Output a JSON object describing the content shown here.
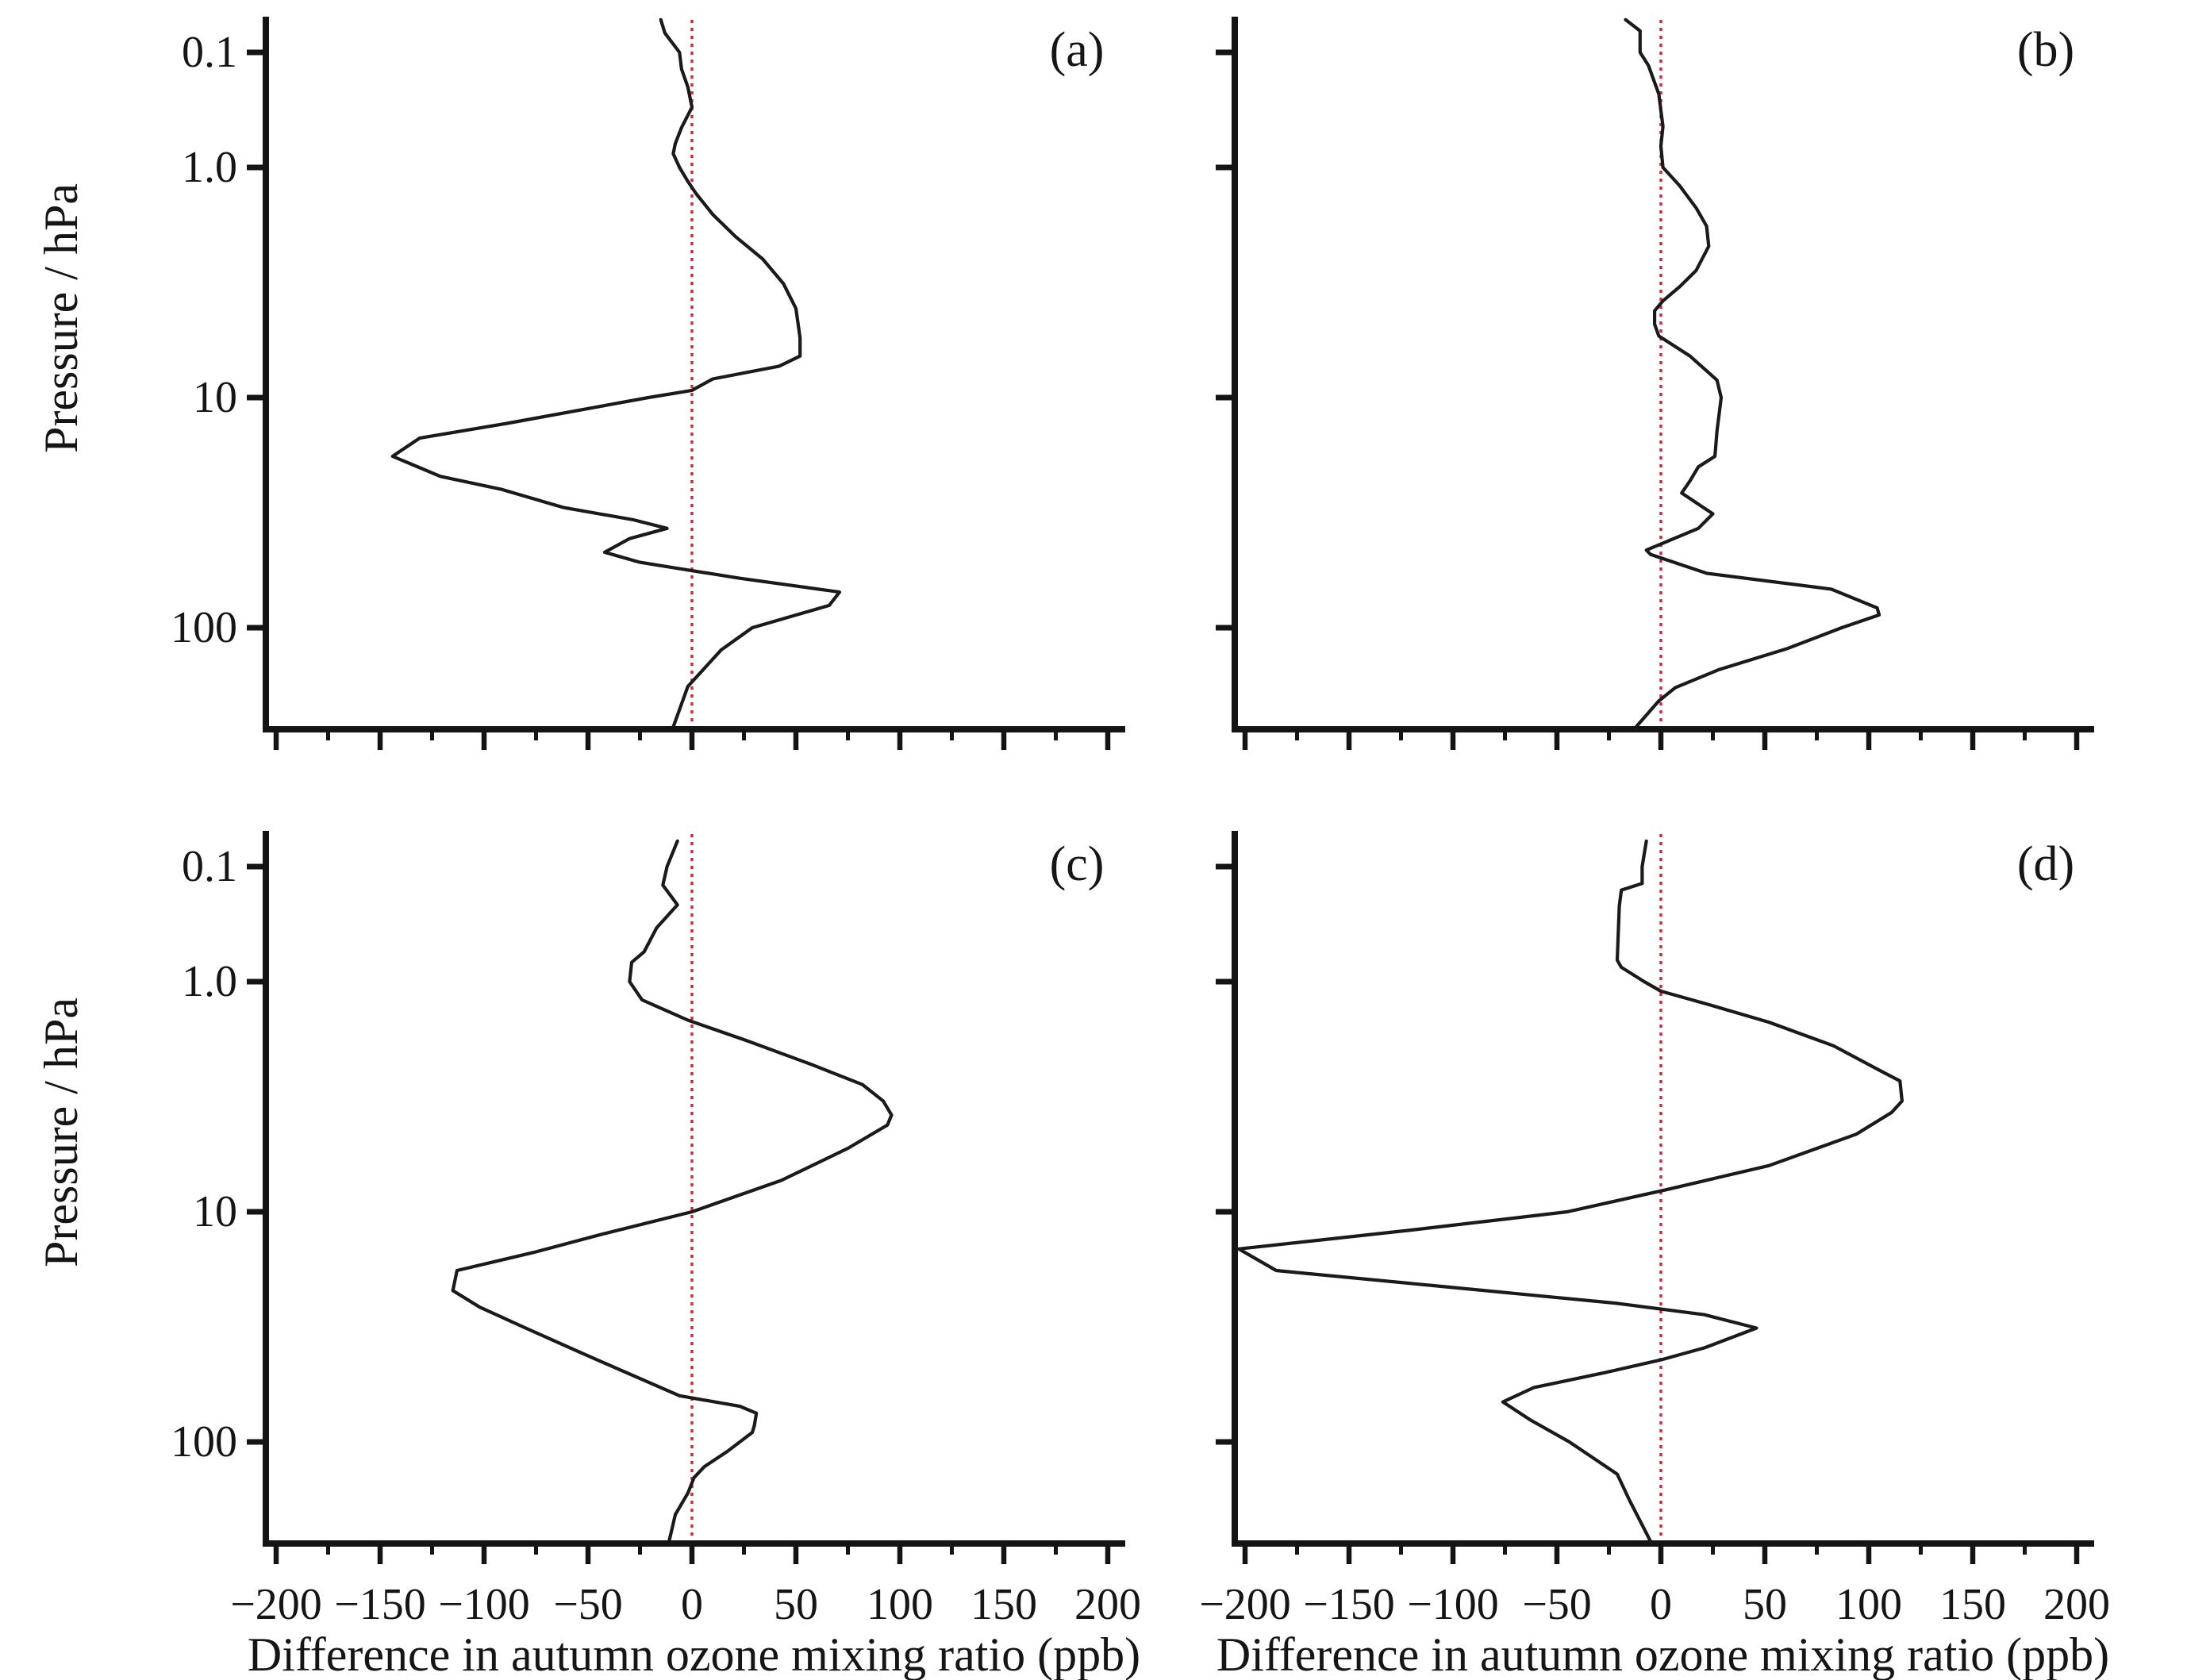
{
  "figure": {
    "background": "#ffffff",
    "axis_color": "#141414",
    "curve_color": "#1a1a1a",
    "zero_line_color": "#cf2b3a",
    "x_axis": {
      "title": "Difference in autumn ozone mixing ratio (ppb)",
      "min": -205,
      "max": 207,
      "major_tick_values": [
        -200,
        -150,
        -100,
        -50,
        0,
        50,
        100,
        150,
        200
      ],
      "tick_labels": [
        "−200",
        "−150",
        "−100",
        "−50",
        "0",
        "50",
        "100",
        "150",
        "200"
      ],
      "minor_step": 25
    },
    "y_axis": {
      "title": "Pressure / hPa",
      "tick_values": [
        0.1,
        1.0,
        10,
        100
      ],
      "tick_labels": [
        "0.1",
        "1.0",
        "10",
        "100"
      ],
      "top": 0.052,
      "bottom": 276,
      "scale": "log, decades above 1 hPa drawn at half height"
    }
  },
  "chart_data": {
    "type": "line",
    "xlabel": "Difference in autumn ozone mixing ratio (ppb)",
    "ylabel": "Pressure / hPa",
    "xlim": [
      -205,
      207
    ],
    "ylim_pressure_hPa": [
      0.052,
      276
    ],
    "zero_reference_line": 0,
    "grid": false,
    "legend": "none",
    "panels": [
      {
        "label": "(a)",
        "points_ppb_hPa": [
          [
            -15,
            0.052
          ],
          [
            -13,
            0.068
          ],
          [
            -6,
            0.1
          ],
          [
            -5,
            0.14
          ],
          [
            -2,
            0.2
          ],
          [
            0,
            0.3
          ],
          [
            -5,
            0.45
          ],
          [
            -8,
            0.62
          ],
          [
            -9,
            0.76
          ],
          [
            -6,
            1.0
          ],
          [
            -2,
            1.15
          ],
          [
            2,
            1.3
          ],
          [
            10,
            1.6
          ],
          [
            21,
            2.0
          ],
          [
            34,
            2.5
          ],
          [
            44,
            3.2
          ],
          [
            50,
            4.1
          ],
          [
            52,
            5.5
          ],
          [
            52,
            6.6
          ],
          [
            42,
            7.3
          ],
          [
            10,
            8.3
          ],
          [
            0,
            9.3
          ],
          [
            -21,
            10
          ],
          [
            -90,
            13
          ],
          [
            -131,
            15
          ],
          [
            -144,
            18
          ],
          [
            -121,
            22
          ],
          [
            -92,
            25
          ],
          [
            -62,
            30
          ],
          [
            -28,
            34
          ],
          [
            -12,
            37
          ],
          [
            -30,
            41
          ],
          [
            -42,
            47
          ],
          [
            -25,
            52
          ],
          [
            23,
            61
          ],
          [
            71,
            70
          ],
          [
            66,
            80
          ],
          [
            29,
            100
          ],
          [
            14,
            125
          ],
          [
            -2,
            180
          ],
          [
            -9,
            270
          ]
        ]
      },
      {
        "label": "(b)",
        "points_ppb_hPa": [
          [
            -17,
            0.052
          ],
          [
            -10,
            0.065
          ],
          [
            -10,
            0.1
          ],
          [
            -6,
            0.13
          ],
          [
            -1,
            0.23
          ],
          [
            0,
            0.32
          ],
          [
            1,
            0.44
          ],
          [
            0,
            0.65
          ],
          [
            1,
            1.0
          ],
          [
            9,
            1.2
          ],
          [
            17,
            1.5
          ],
          [
            22,
            1.8
          ],
          [
            23,
            2.2
          ],
          [
            17,
            2.8
          ],
          [
            9,
            3.3
          ],
          [
            1,
            3.8
          ],
          [
            -3,
            4.2
          ],
          [
            -3,
            4.8
          ],
          [
            -1,
            5.4
          ],
          [
            14,
            6.6
          ],
          [
            27,
            8.4
          ],
          [
            29,
            10
          ],
          [
            27,
            14
          ],
          [
            26,
            18
          ],
          [
            18,
            20
          ],
          [
            14,
            23
          ],
          [
            10,
            26
          ],
          [
            25,
            32
          ],
          [
            18,
            37
          ],
          [
            -7,
            46
          ],
          [
            -5,
            48
          ],
          [
            22,
            58
          ],
          [
            82,
            68
          ],
          [
            104,
            82
          ],
          [
            105,
            88
          ],
          [
            87,
            100
          ],
          [
            61,
            123
          ],
          [
            28,
            152
          ],
          [
            7,
            182
          ],
          [
            -1,
            208
          ],
          [
            -12,
            270
          ]
        ]
      },
      {
        "label": "(c)",
        "points_ppb_hPa": [
          [
            -7,
            0.06
          ],
          [
            -12,
            0.1
          ],
          [
            -14,
            0.145
          ],
          [
            -7,
            0.215
          ],
          [
            -17,
            0.34
          ],
          [
            -23,
            0.55
          ],
          [
            -29,
            0.68
          ],
          [
            -30,
            1.0
          ],
          [
            -24,
            1.2
          ],
          [
            -2,
            1.47
          ],
          [
            26,
            1.8
          ],
          [
            58,
            2.3
          ],
          [
            82,
            2.8
          ],
          [
            92,
            3.3
          ],
          [
            96,
            3.8
          ],
          [
            94,
            4.2
          ],
          [
            75,
            5.3
          ],
          [
            43,
            7.3
          ],
          [
            0,
            10
          ],
          [
            -43,
            12.5
          ],
          [
            -76,
            15
          ],
          [
            -113,
            18
          ],
          [
            -115,
            22
          ],
          [
            -102,
            26
          ],
          [
            -80,
            32
          ],
          [
            -56,
            40
          ],
          [
            -36,
            48
          ],
          [
            -21,
            55
          ],
          [
            -6,
            63
          ],
          [
            23,
            70
          ],
          [
            31,
            75
          ],
          [
            30,
            85
          ],
          [
            29,
            91
          ],
          [
            17,
            110
          ],
          [
            6,
            128
          ],
          [
            1,
            143
          ],
          [
            -2,
            167
          ],
          [
            -8,
            207
          ],
          [
            -11,
            270
          ]
        ]
      },
      {
        "label": "(d)",
        "points_ppb_hPa": [
          [
            -7,
            0.06
          ],
          [
            -9,
            0.1
          ],
          [
            -9,
            0.14
          ],
          [
            -19,
            0.16
          ],
          [
            -20,
            0.22
          ],
          [
            -21,
            0.65
          ],
          [
            -19,
            0.75
          ],
          [
            -8,
            1.0
          ],
          [
            0,
            1.1
          ],
          [
            22,
            1.25
          ],
          [
            52,
            1.5
          ],
          [
            83,
            1.9
          ],
          [
            106,
            2.45
          ],
          [
            115,
            2.7
          ],
          [
            116,
            3.3
          ],
          [
            111,
            3.7
          ],
          [
            94,
            4.6
          ],
          [
            52,
            6.3
          ],
          [
            3,
            8
          ],
          [
            -45,
            10
          ],
          [
            -120,
            12
          ],
          [
            -203,
            14.5
          ],
          [
            -185,
            18
          ],
          [
            -108,
            21
          ],
          [
            -21,
            25
          ],
          [
            21,
            28
          ],
          [
            46,
            32
          ],
          [
            21,
            39
          ],
          [
            0,
            44
          ],
          [
            -27,
            50
          ],
          [
            -61,
            58
          ],
          [
            -76,
            67
          ],
          [
            -63,
            80
          ],
          [
            -44,
            100
          ],
          [
            -21,
            138
          ],
          [
            -15,
            180
          ],
          [
            -5,
            270
          ]
        ]
      }
    ]
  }
}
